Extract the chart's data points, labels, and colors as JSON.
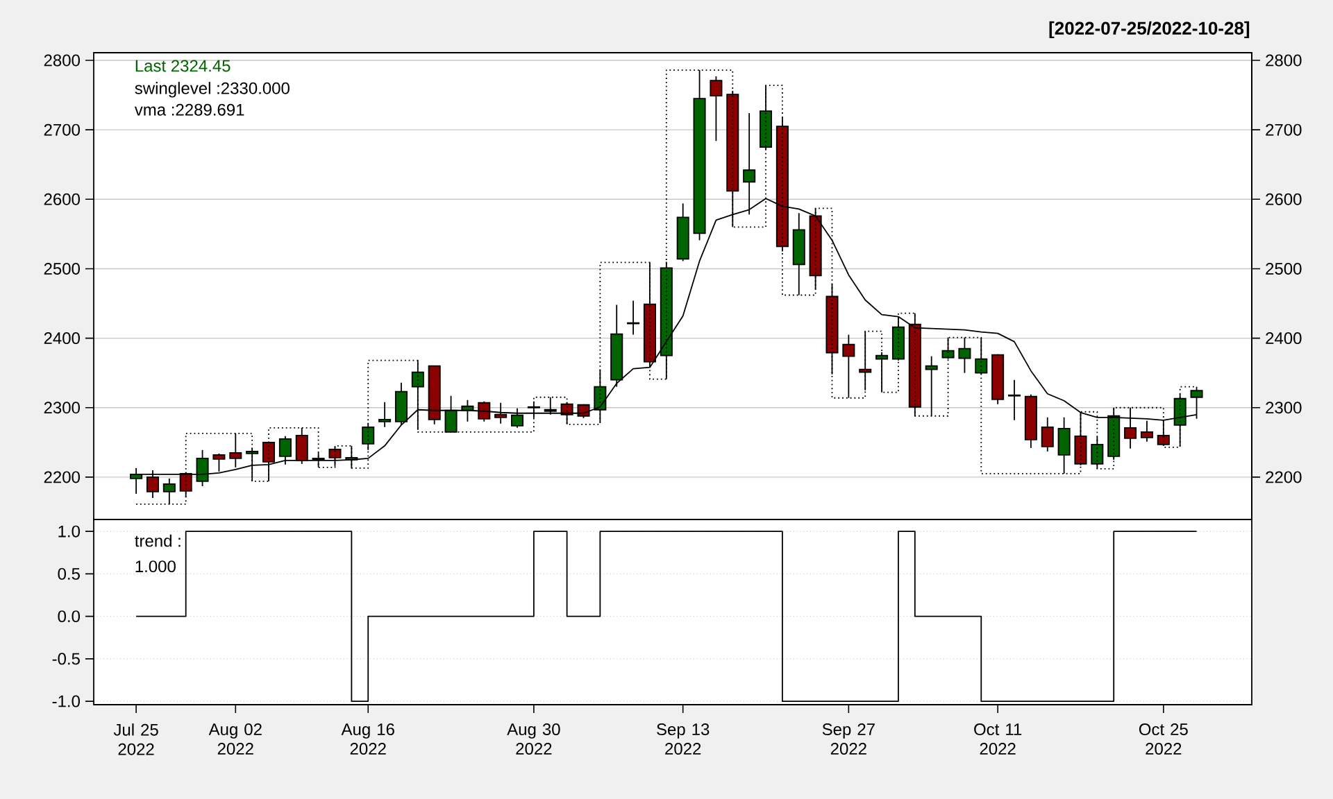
{
  "chart_data": [
    {
      "type": "candlestick",
      "subtitle": "[2022-07-25/2022-10-28]",
      "categories": [
        null,
        null,
        null,
        null,
        null,
        null,
        null,
        null,
        null,
        null,
        null,
        null,
        null,
        null,
        null,
        null,
        null,
        null,
        null,
        null,
        null,
        null,
        null,
        null,
        null,
        null,
        null,
        null,
        null,
        null,
        null,
        null,
        null,
        null,
        null,
        null,
        null,
        null,
        null,
        null,
        null,
        null,
        null,
        null,
        null,
        null,
        null,
        null,
        null,
        null,
        null,
        null,
        null,
        null,
        null,
        null,
        null,
        null,
        null,
        null,
        null,
        null,
        null,
        null,
        null
      ],
      "ohlc": [
        [
          2198,
          2213,
          2176,
          2204
        ],
        [
          2200,
          2210,
          2170,
          2179
        ],
        [
          2179,
          2198,
          2161,
          2190
        ],
        [
          2205,
          2207,
          2171,
          2180
        ],
        [
          2194,
          2239,
          2187,
          2227
        ],
        [
          2232,
          2234,
          2208,
          2226
        ],
        [
          2235,
          2263,
          2214,
          2227
        ],
        [
          2234,
          2242,
          2194,
          2237
        ],
        [
          2250,
          2251,
          2194,
          2222
        ],
        [
          2230,
          2259,
          2218,
          2255
        ],
        [
          2260,
          2271,
          2219,
          2224
        ],
        [
          2225,
          2235,
          2214,
          2227
        ],
        [
          2240,
          2244,
          2216,
          2228
        ],
        [
          2225,
          2245,
          2213,
          2228
        ],
        [
          2248,
          2278,
          2239,
          2272
        ],
        [
          2280,
          2308,
          2272,
          2283
        ],
        [
          2280,
          2336,
          2275,
          2323
        ],
        [
          2330,
          2368,
          2268,
          2351
        ],
        [
          2360,
          2360,
          2276,
          2283
        ],
        [
          2265,
          2317,
          2265,
          2296
        ],
        [
          2296,
          2311,
          2280,
          2302
        ],
        [
          2307,
          2309,
          2280,
          2284
        ],
        [
          2290,
          2307,
          2277,
          2286
        ],
        [
          2274,
          2299,
          2271,
          2289
        ],
        [
          2300,
          2309,
          2285,
          2301
        ],
        [
          2295,
          2315,
          2290,
          2297
        ],
        [
          2305,
          2308,
          2276,
          2290
        ],
        [
          2304,
          2305,
          2285,
          2288
        ],
        [
          2297,
          2355,
          2279,
          2330
        ],
        [
          2340,
          2448,
          2330,
          2406
        ],
        [
          2421,
          2454,
          2405,
          2422
        ],
        [
          2449,
          2509,
          2358,
          2366
        ],
        [
          2375,
          2510,
          2341,
          2501
        ],
        [
          2514,
          2594,
          2511,
          2574
        ],
        [
          2551,
          2786,
          2541,
          2745
        ],
        [
          2771,
          2777,
          2684,
          2749
        ],
        [
          2751,
          2756,
          2560,
          2612
        ],
        [
          2625,
          2724,
          2578,
          2642
        ],
        [
          2675,
          2764,
          2672,
          2727
        ],
        [
          2705,
          2718,
          2525,
          2532
        ],
        [
          2506,
          2580,
          2462,
          2556
        ],
        [
          2576,
          2587,
          2470,
          2490
        ],
        [
          2460,
          2478,
          2348,
          2379
        ],
        [
          2391,
          2405,
          2314,
          2374
        ],
        [
          2355,
          2410,
          2325,
          2351
        ],
        [
          2370,
          2380,
          2322,
          2375
        ],
        [
          2370,
          2431,
          2368,
          2416
        ],
        [
          2420,
          2436,
          2288,
          2301
        ],
        [
          2355,
          2374,
          2288,
          2360
        ],
        [
          2372,
          2401,
          2370,
          2382
        ],
        [
          2371,
          2401,
          2350,
          2385
        ],
        [
          2350,
          2400,
          2348,
          2370
        ],
        [
          2376,
          2377,
          2305,
          2312
        ],
        [
          2318,
          2340,
          2282,
          2317
        ],
        [
          2316,
          2319,
          2242,
          2254
        ],
        [
          2272,
          2286,
          2237,
          2244
        ],
        [
          2232,
          2286,
          2205,
          2270
        ],
        [
          2259,
          2293,
          2217,
          2219
        ],
        [
          2219,
          2258,
          2212,
          2247
        ],
        [
          2230,
          2300,
          2225,
          2288
        ],
        [
          2271,
          2300,
          2241,
          2256
        ],
        [
          2265,
          2281,
          2251,
          2257
        ],
        [
          2260,
          2281,
          2245,
          2247
        ],
        [
          2275,
          2320,
          2244,
          2313
        ],
        [
          2315,
          2330,
          2284,
          2324.45
        ]
      ],
      "colors": [
        "#006400",
        "#8b0000",
        "#006400",
        "#8b0000",
        "#006400",
        "#8b0000",
        "#8b0000",
        "#006400",
        "#8b0000",
        "#006400",
        "#8b0000",
        "#006400",
        "#8b0000",
        "#006400",
        "#006400",
        "#006400",
        "#006400",
        "#006400",
        "#8b0000",
        "#006400",
        "#006400",
        "#8b0000",
        "#8b0000",
        "#006400",
        "#006400",
        "#006400",
        "#8b0000",
        "#8b0000",
        "#006400",
        "#006400",
        "#006400",
        "#8b0000",
        "#006400",
        "#006400",
        "#006400",
        "#8b0000",
        "#8b0000",
        "#006400",
        "#006400",
        "#8b0000",
        "#006400",
        "#8b0000",
        "#8b0000",
        "#8b0000",
        "#8b0000",
        "#006400",
        "#006400",
        "#8b0000",
        "#006400",
        "#006400",
        "#006400",
        "#006400",
        "#8b0000",
        "#8b0000",
        "#8b0000",
        "#8b0000",
        "#006400",
        "#8b0000",
        "#006400",
        "#006400",
        "#8b0000",
        "#8b0000",
        "#8b0000",
        "#006400",
        "#006400"
      ],
      "series": [
        {
          "type": "line",
          "color": "#000000",
          "values": [
            2204,
            2204,
            2204,
            2204,
            2204,
            2206,
            2211,
            2217,
            2218,
            2224,
            2224,
            2224,
            2224,
            2225,
            2227,
            2245,
            2275,
            2297,
            2296,
            2296,
            2296,
            2295,
            2293,
            2292,
            2292,
            2292,
            2292,
            2292,
            2301,
            2335,
            2356,
            2358,
            2395,
            2432,
            2511,
            2570,
            2578,
            2585,
            2601,
            2590,
            2586,
            2576,
            2541,
            2491,
            2455,
            2434,
            2431,
            2415,
            2414,
            2413,
            2412,
            2409,
            2407,
            2395,
            2353,
            2320,
            2310,
            2293,
            2286,
            2286,
            2285,
            2284,
            2282,
            2286,
            2290
          ]
        },
        {
          "type": "step",
          "color": "#000000",
          "line_style": "dotted",
          "values": [
            2161,
            2161,
            2161,
            2263,
            2263,
            2263,
            2263,
            2194,
            2271,
            2271,
            2271,
            2214,
            2245,
            2213,
            2368,
            2368,
            2368,
            2265,
            2265,
            2265,
            2265,
            2265,
            2265,
            2265,
            2315,
            2315,
            2276,
            2276,
            2509,
            2509,
            2509,
            2341,
            2786,
            2786,
            2786,
            2786,
            2560,
            2560,
            2764,
            2462,
            2462,
            2587,
            2314,
            2314,
            2410,
            2322,
            2436,
            2288,
            2288,
            2401,
            2401,
            2205,
            2205,
            2205,
            2205,
            2205,
            2205,
            2294,
            2212,
            2300,
            2300,
            2300,
            2243,
            2330,
            2330
          ]
        }
      ],
      "ylim": [
        2139,
        2811
      ],
      "yticks": [
        2200,
        2300,
        2400,
        2500,
        2600,
        2700,
        2800
      ],
      "y2lim": [
        2139,
        2811
      ],
      "y2ticks": [
        2200,
        2300,
        2400,
        2500,
        2600,
        2700,
        2800
      ],
      "grid": "y",
      "tick_labels": "y",
      "annotations": [
        "Last 2324.45",
        "swinglevel :2330.000",
        "vma :2289.691"
      ]
    },
    {
      "type": "step",
      "color": "#000000",
      "categories": [
        "Jul 25 2022",
        null,
        null,
        null,
        null,
        null,
        "Aug 02 2022",
        null,
        null,
        null,
        null,
        null,
        null,
        null,
        "Aug 16 2022",
        null,
        null,
        null,
        null,
        null,
        null,
        null,
        null,
        null,
        "Aug 30 2022",
        null,
        null,
        null,
        null,
        null,
        null,
        null,
        null,
        "Sep 13 2022",
        null,
        null,
        null,
        null,
        null,
        null,
        null,
        null,
        null,
        "Sep 27 2022",
        null,
        null,
        null,
        null,
        null,
        null,
        null,
        null,
        "Oct 11 2022",
        null,
        null,
        null,
        null,
        null,
        null,
        null,
        null,
        null,
        "Oct 25 2022",
        null,
        null
      ],
      "values": [
        0,
        0,
        0,
        1,
        1,
        1,
        1,
        1,
        1,
        1,
        1,
        1,
        1,
        -1,
        0,
        0,
        0,
        0,
        0,
        0,
        0,
        0,
        0,
        0,
        1,
        1,
        0,
        0,
        1,
        1,
        1,
        1,
        1,
        1,
        1,
        1,
        1,
        1,
        1,
        -1,
        -1,
        -1,
        -1,
        -1,
        -1,
        -1,
        1,
        0,
        0,
        0,
        0,
        -1,
        -1,
        -1,
        -1,
        -1,
        -1,
        -1,
        -1,
        1,
        1,
        1,
        1,
        1,
        1
      ],
      "ylim": [
        -1.04,
        1.14
      ],
      "yticks": [
        {
          "value": -1,
          "label": "-1.0"
        },
        {
          "value": -0.5,
          "label": "-0.5"
        },
        {
          "value": 0,
          "label": "0.0"
        },
        {
          "value": 0.5,
          "label": "0.5"
        },
        {
          "value": 1,
          "label": "1.0"
        }
      ],
      "grid": "y",
      "annotations": [
        "trend :",
        "1.000"
      ]
    }
  ]
}
